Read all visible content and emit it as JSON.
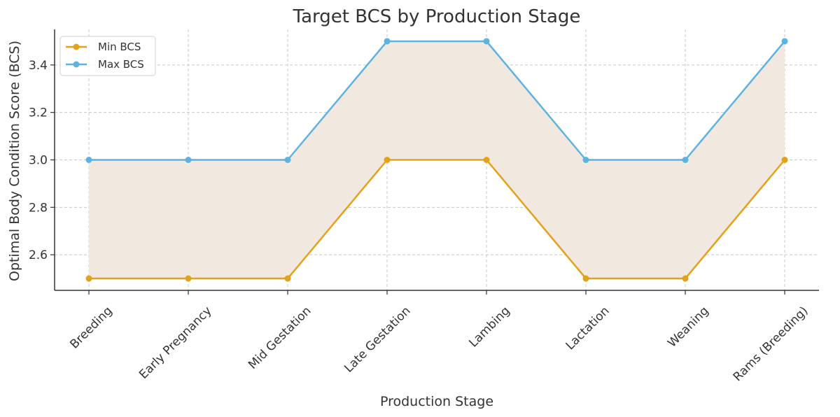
{
  "chart_data": {
    "type": "line",
    "title": "Target BCS by Production Stage",
    "xlabel": "Production Stage",
    "ylabel": "Optimal Body Condition Score (BCS)",
    "categories": [
      "Breeding",
      "Early Pregnancy",
      "Mid Gestation",
      "Late Gestation",
      "Lambing",
      "Lactation",
      "Weaning",
      "Rams (Breeding)"
    ],
    "series": [
      {
        "name": "Min BCS",
        "values": [
          2.5,
          2.5,
          2.5,
          3.0,
          3.0,
          2.5,
          2.5,
          3.0
        ],
        "color": "#E3A21A"
      },
      {
        "name": "Max BCS",
        "values": [
          3.0,
          3.0,
          3.0,
          3.5,
          3.5,
          3.0,
          3.0,
          3.5
        ],
        "color": "#5DB3E0"
      }
    ],
    "fill_between": {
      "color": "#F1E8DF"
    },
    "yticks": [
      "2.6",
      "2.8",
      "3.0",
      "3.2",
      "3.4"
    ],
    "ylim": [
      2.45,
      3.55
    ],
    "grid": true,
    "legend_position": "top-left"
  }
}
